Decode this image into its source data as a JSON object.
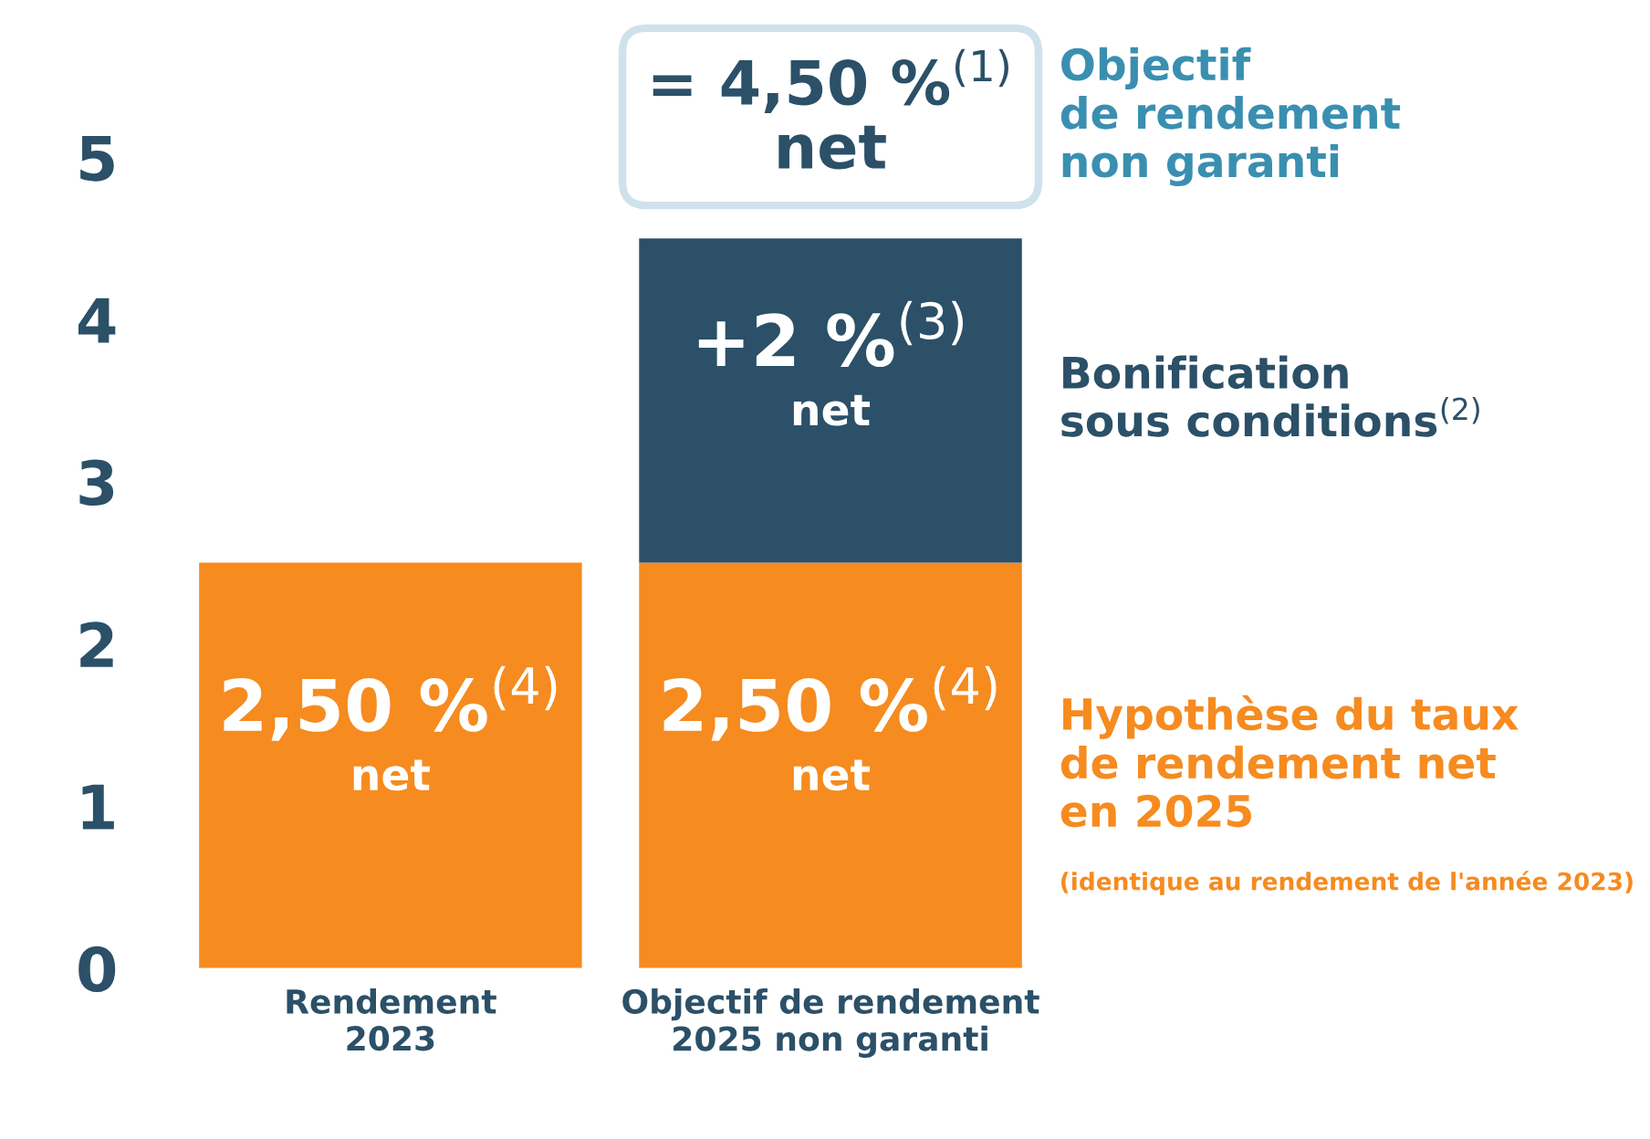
{
  "chart_data": {
    "type": "bar",
    "stacked": true,
    "categories": [
      "Rendement\n2023",
      "Objectif de rendement\n2025 non garanti"
    ],
    "series": [
      {
        "name": "Hypothèse du taux\nde rendement net\nen 2025",
        "color": "#f68b1f",
        "values": [
          2.5,
          2.5
        ],
        "value_labels": [
          "2,50 %$^{(4)}$\nnet",
          "2,50 %$^{(4)}$\nnet"
        ]
      },
      {
        "name": "Bonification\nsous conditions$^{(2)}$",
        "color": "#2b5068",
        "values": [
          null,
          2
        ],
        "value_labels": [
          null,
          "+2 %$^{(3)}$\nnet"
        ]
      }
    ],
    "totals": [
      null,
      "= 4,50 %$^{(1)}$\nnet"
    ],
    "annotations": [
      "Objectif\nde rendement\nnon garanti",
      "(identique au rendement de l'année 2023)"
    ],
    "ylim": [
      0,
      5.9
    ],
    "yticks": [
      0,
      1,
      2,
      3,
      4,
      5
    ],
    "grid": false,
    "legend": false
  }
}
